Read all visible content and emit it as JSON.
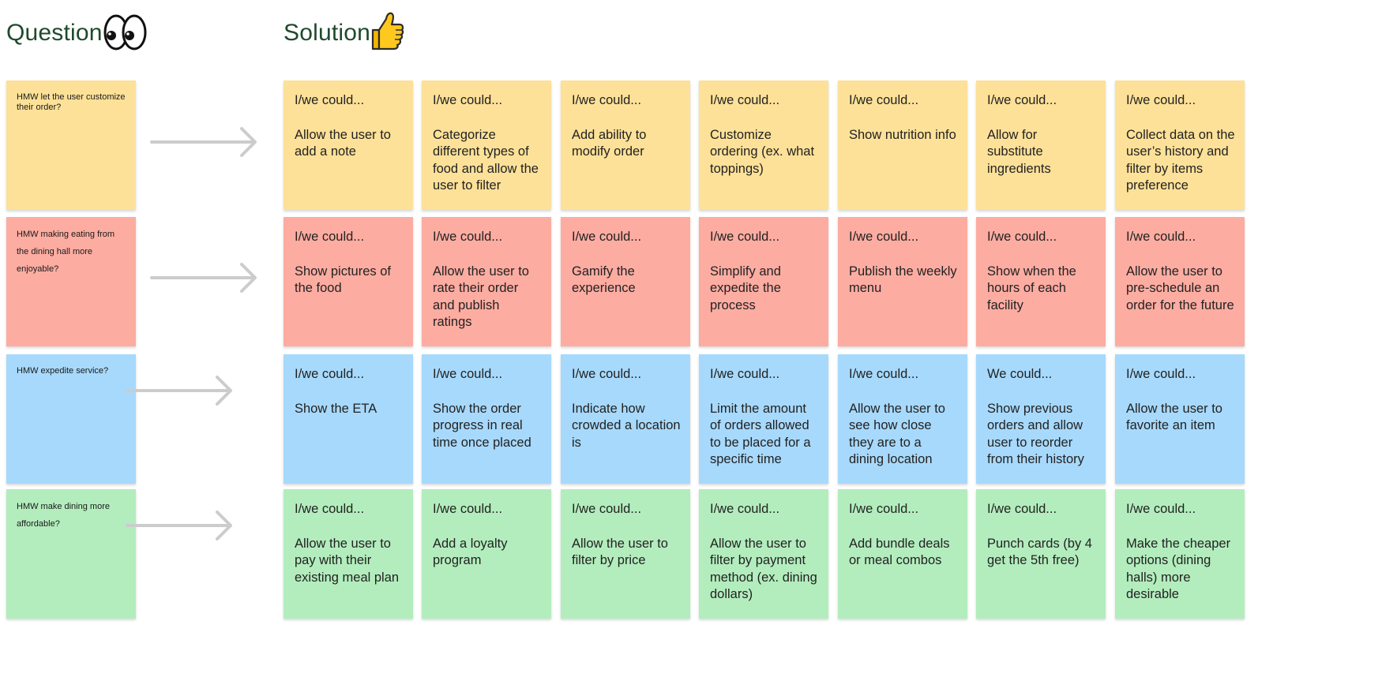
{
  "headings": {
    "question": "Question",
    "solution": "Solution"
  },
  "icons": {
    "question": "eyes-icon",
    "solution": "thumbs-up-icon"
  },
  "colors": {
    "yellow": "#fde198",
    "red": "#fdaca1",
    "blue": "#a7d9fc",
    "green": "#b3edbd",
    "heading": "#1f4a2c",
    "arrow": "#cccccc"
  },
  "rows": [
    {
      "color": "#fde198",
      "question": "HMW let the user customize their order?",
      "solutions": [
        {
          "lead": "I/we could...",
          "body": "Allow the user to add a note"
        },
        {
          "lead": "I/we could...",
          "body": "Categorize different types of food and allow the user to filter"
        },
        {
          "lead": "I/we could...",
          "body": "Add ability to modify order"
        },
        {
          "lead": "I/we could...",
          "body": "Customize ordering (ex. what toppings)"
        },
        {
          "lead": "I/we could...",
          "body": "Show nutrition info"
        },
        {
          "lead": "I/we could...",
          "body": "Allow for substitute ingredients"
        },
        {
          "lead": "I/we could...",
          "body": "Collect data on the user’s history and filter by items preference"
        }
      ]
    },
    {
      "color": "#fdaca1",
      "question": "HMW making eating from the dining hall more enjoyable?",
      "solutions": [
        {
          "lead": "I/we could...",
          "body": "Show pictures of the food"
        },
        {
          "lead": "I/we could...",
          "body": "Allow the user to rate their order and publish ratings"
        },
        {
          "lead": "I/we could...",
          "body": "Gamify the experience"
        },
        {
          "lead": "I/we could...",
          "body": "Simplify and expedite the process"
        },
        {
          "lead": "I/we could...",
          "body": "Publish the weekly menu"
        },
        {
          "lead": "I/we could...",
          "body": "Show when the hours of each facility"
        },
        {
          "lead": "I/we could...",
          "body": "Allow the user to pre-schedule an order for the future"
        }
      ]
    },
    {
      "color": "#a7d9fc",
      "question": "HMW expedite service?",
      "solutions": [
        {
          "lead": "I/we could...",
          "body": "Show the ETA"
        },
        {
          "lead": "I/we could...",
          "body": "Show the order progress in real time once placed"
        },
        {
          "lead": "I/we could...",
          "body": "Indicate how crowded a location is"
        },
        {
          "lead": "I/we could...",
          "body": "Limit the amount of orders allowed to be placed for a specific time"
        },
        {
          "lead": "I/we could...",
          "body": "Allow the user to see how close they are to a dining location"
        },
        {
          "lead": "We could...",
          "body": "Show previous orders and allow user to reorder from their history"
        },
        {
          "lead": "I/we could...",
          "body": "Allow the user to favorite an item"
        }
      ]
    },
    {
      "color": "#b3edbd",
      "question": "HMW make dining more affordable?",
      "solutions": [
        {
          "lead": "I/we could...",
          "body": "Allow the user to pay with their existing meal plan"
        },
        {
          "lead": "I/we could...",
          "body": "Add a loyalty program"
        },
        {
          "lead": "I/we could...",
          "body": "Allow the user to filter by price"
        },
        {
          "lead": "I/we could...",
          "body": "Allow the user to filter by payment method (ex. dining dollars)"
        },
        {
          "lead": "I/we could...",
          "body": "Add bundle deals or meal combos"
        },
        {
          "lead": "I/we could...",
          "body": "Punch cards (by 4 get the 5th free)"
        },
        {
          "lead": "I/we could...",
          "body": "Make the cheaper options (dining halls) more desirable"
        }
      ]
    }
  ]
}
